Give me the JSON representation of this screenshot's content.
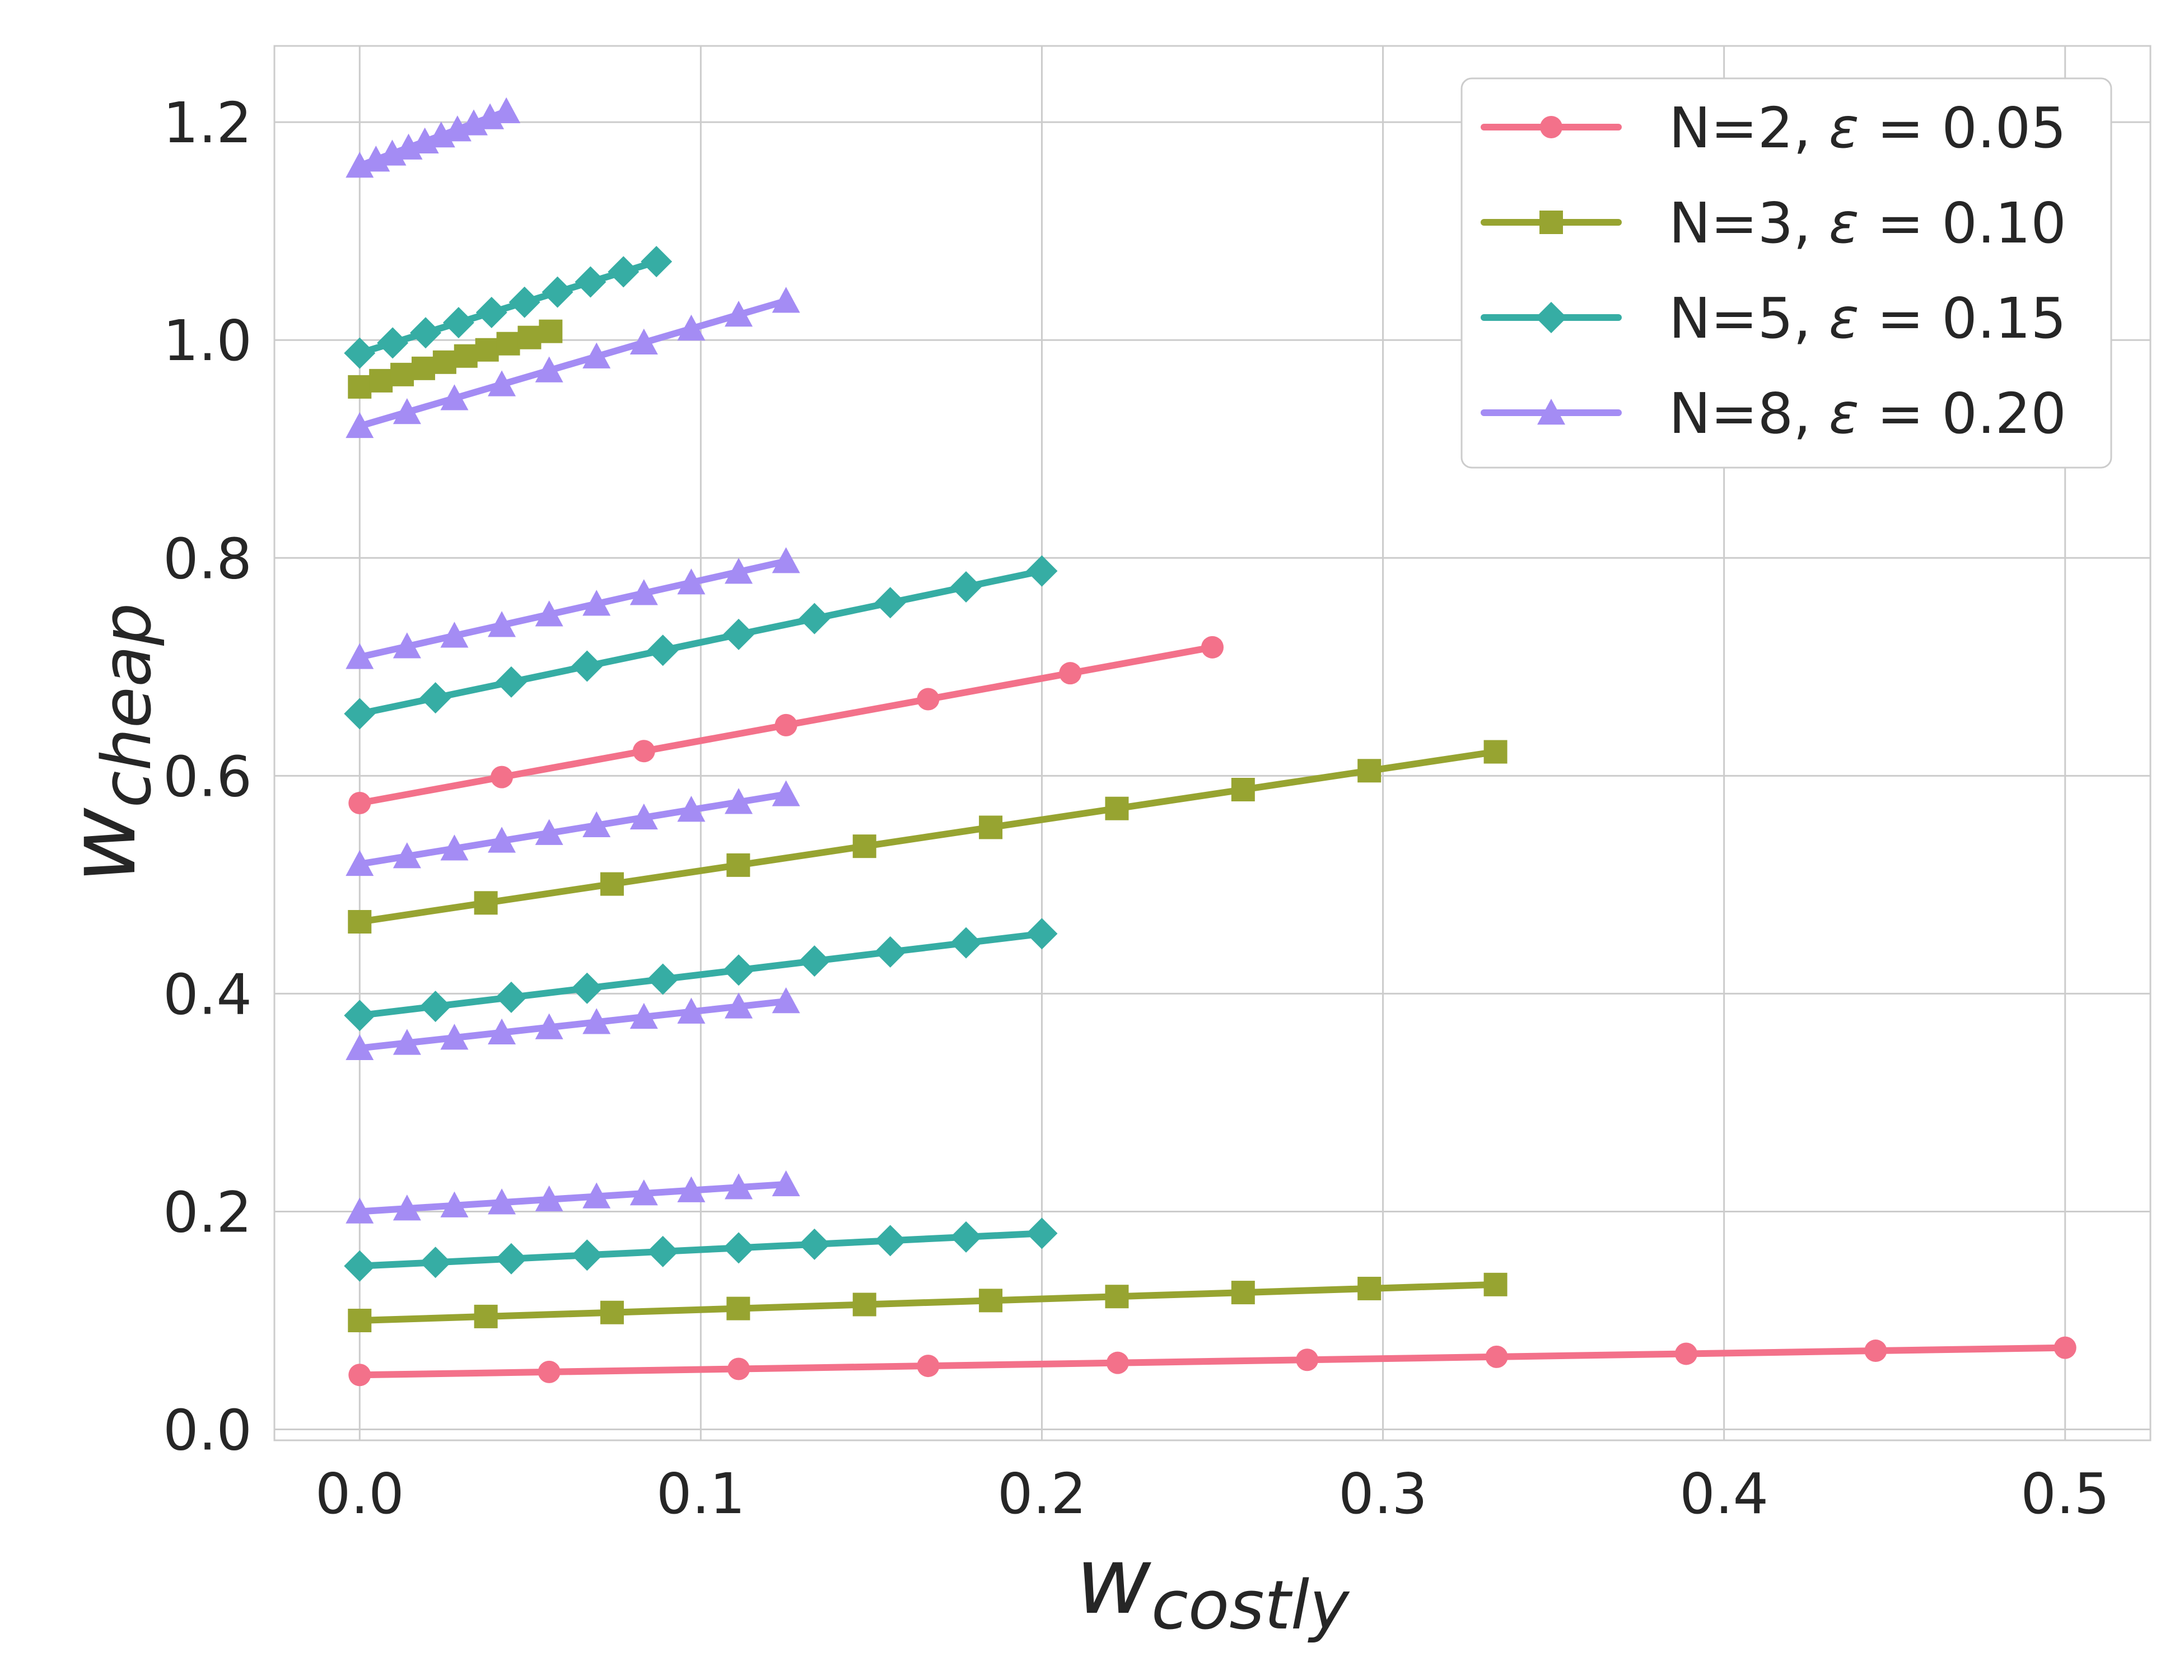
{
  "chart_data": {
    "type": "line",
    "xlabel": "w",
    "xlabel_sub": "costly",
    "ylabel": "w",
    "ylabel_sub": "cheap",
    "xlim": [
      -0.025,
      0.525
    ],
    "ylim": [
      -0.01,
      1.27
    ],
    "xticks": [
      0.0,
      0.1,
      0.2,
      0.3,
      0.4,
      0.5
    ],
    "xtick_labels": [
      "0.0",
      "0.1",
      "0.2",
      "0.3",
      "0.4",
      "0.5"
    ],
    "yticks": [
      0.0,
      0.2,
      0.4,
      0.6,
      0.8,
      1.0,
      1.2
    ],
    "ytick_labels": [
      "0.0",
      "0.2",
      "0.4",
      "0.6",
      "0.8",
      "1.0",
      "1.2"
    ],
    "grid": true,
    "legend_position": "upper right",
    "legend": [
      {
        "label": "N=2, ",
        "eps": "ε",
        "value": " = 0.05",
        "color": "#f3718a",
        "marker": "circle"
      },
      {
        "label": "N=3, ",
        "eps": "ε",
        "value": " = 0.10",
        "color": "#97a431",
        "marker": "square"
      },
      {
        "label": "N=5, ",
        "eps": "ε",
        "value": " = 0.15",
        "color": "#36ada4",
        "marker": "diamond"
      },
      {
        "label": "N=8, ",
        "eps": "ε",
        "value": " = 0.20",
        "color": "#a48cf4",
        "marker": "triangle"
      }
    ],
    "series": [
      {
        "group": 0,
        "x_start": 0.0,
        "x_end": 0.5,
        "n": 10,
        "y_start": 0.05,
        "y_end": 0.075
      },
      {
        "group": 0,
        "x_start": 0.0,
        "x_end": 0.25,
        "n": 7,
        "y_start": 0.575,
        "y_end": 0.718
      },
      {
        "group": 1,
        "x_start": 0.0,
        "x_end": 0.333,
        "n": 10,
        "y_start": 0.1,
        "y_end": 0.133
      },
      {
        "group": 1,
        "x_start": 0.0,
        "x_end": 0.333,
        "n": 10,
        "y_start": 0.466,
        "y_end": 0.622
      },
      {
        "group": 1,
        "x_start": 0.0,
        "x_end": 0.056,
        "n": 10,
        "y_start": 0.957,
        "y_end": 1.008
      },
      {
        "group": 2,
        "x_start": 0.0,
        "x_end": 0.2,
        "n": 10,
        "y_start": 0.15,
        "y_end": 0.18
      },
      {
        "group": 2,
        "x_start": 0.0,
        "x_end": 0.2,
        "n": 10,
        "y_start": 0.38,
        "y_end": 0.455
      },
      {
        "group": 2,
        "x_start": 0.0,
        "x_end": 0.2,
        "n": 10,
        "y_start": 0.657,
        "y_end": 0.788
      },
      {
        "group": 2,
        "x_start": 0.0,
        "x_end": 0.087,
        "n": 10,
        "y_start": 0.988,
        "y_end": 1.072
      },
      {
        "group": 3,
        "x_start": 0.0,
        "x_end": 0.125,
        "n": 10,
        "y_start": 0.2,
        "y_end": 0.225
      },
      {
        "group": 3,
        "x_start": 0.0,
        "x_end": 0.125,
        "n": 10,
        "y_start": 0.35,
        "y_end": 0.393
      },
      {
        "group": 3,
        "x_start": 0.0,
        "x_end": 0.125,
        "n": 10,
        "y_start": 0.519,
        "y_end": 0.583
      },
      {
        "group": 3,
        "x_start": 0.0,
        "x_end": 0.125,
        "n": 10,
        "y_start": 0.709,
        "y_end": 0.797
      },
      {
        "group": 3,
        "x_start": 0.0,
        "x_end": 0.125,
        "n": 10,
        "y_start": 0.921,
        "y_end": 1.036
      },
      {
        "group": 3,
        "x_start": 0.0,
        "x_end": 0.043,
        "n": 10,
        "y_start": 1.16,
        "y_end": 1.21
      }
    ]
  }
}
